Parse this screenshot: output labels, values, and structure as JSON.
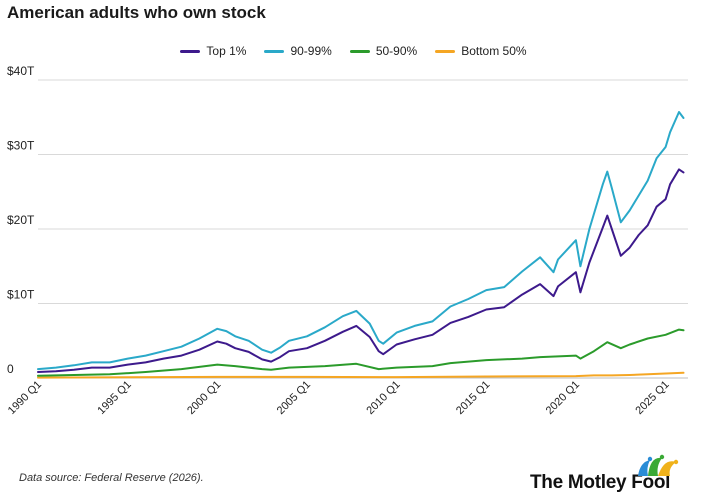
{
  "title": "American adults who own stock",
  "source": "Data source: Federal Reserve (2026).",
  "logo_text": "The Motley Fool",
  "chart_data": {
    "type": "line",
    "title": "American adults who own stock",
    "xlabel": "",
    "ylabel": "",
    "x_ticks": [
      "1990 Q1",
      "1995 Q1",
      "2000 Q1",
      "2005 Q1",
      "2010 Q1",
      "2015 Q1",
      "2020 Q1",
      "2025 Q1"
    ],
    "y_ticks": [
      {
        "value": 0,
        "label": "0"
      },
      {
        "value": 10,
        "label": "$10T"
      },
      {
        "value": 20,
        "label": "$20T"
      },
      {
        "value": 30,
        "label": "$30T"
      },
      {
        "value": 40,
        "label": "$40T"
      }
    ],
    "ylim": [
      0,
      40
    ],
    "xlim": [
      1990.0,
      2026.25
    ],
    "grid": "horizontal",
    "legend_position": "top",
    "series": [
      {
        "name": "Top 1%",
        "color": "#3d1a8c",
        "points": [
          [
            1990.0,
            0.8
          ],
          [
            1991.0,
            0.9
          ],
          [
            1992.0,
            1.1
          ],
          [
            1993.0,
            1.4
          ],
          [
            1994.0,
            1.4
          ],
          [
            1995.0,
            1.8
          ],
          [
            1996.0,
            2.1
          ],
          [
            1997.0,
            2.6
          ],
          [
            1998.0,
            3.0
          ],
          [
            1999.0,
            3.8
          ],
          [
            2000.0,
            4.9
          ],
          [
            2000.5,
            4.6
          ],
          [
            2001.0,
            4.0
          ],
          [
            2001.75,
            3.5
          ],
          [
            2002.5,
            2.5
          ],
          [
            2003.0,
            2.2
          ],
          [
            2003.5,
            2.8
          ],
          [
            2004.0,
            3.6
          ],
          [
            2005.0,
            4.0
          ],
          [
            2006.0,
            5.0
          ],
          [
            2007.0,
            6.2
          ],
          [
            2007.75,
            7.0
          ],
          [
            2008.5,
            5.5
          ],
          [
            2009.0,
            3.6
          ],
          [
            2009.25,
            3.2
          ],
          [
            2010.0,
            4.5
          ],
          [
            2011.0,
            5.2
          ],
          [
            2012.0,
            5.8
          ],
          [
            2013.0,
            7.4
          ],
          [
            2014.0,
            8.2
          ],
          [
            2015.0,
            9.2
          ],
          [
            2016.0,
            9.5
          ],
          [
            2017.0,
            11.2
          ],
          [
            2018.0,
            12.6
          ],
          [
            2018.75,
            11.0
          ],
          [
            2019.0,
            12.3
          ],
          [
            2020.0,
            14.2
          ],
          [
            2020.25,
            11.5
          ],
          [
            2020.75,
            15.5
          ],
          [
            2021.5,
            20.2
          ],
          [
            2021.75,
            21.8
          ],
          [
            2022.0,
            20.0
          ],
          [
            2022.5,
            16.4
          ],
          [
            2023.0,
            17.5
          ],
          [
            2023.5,
            19.2
          ],
          [
            2024.0,
            20.5
          ],
          [
            2024.5,
            23.0
          ],
          [
            2025.0,
            24.0
          ],
          [
            2025.25,
            26.0
          ],
          [
            2025.75,
            28.0
          ],
          [
            2026.0,
            27.6
          ]
        ]
      },
      {
        "name": "90-99%",
        "color": "#2aa9c9",
        "points": [
          [
            1990.0,
            1.2
          ],
          [
            1991.0,
            1.4
          ],
          [
            1992.0,
            1.7
          ],
          [
            1993.0,
            2.1
          ],
          [
            1994.0,
            2.1
          ],
          [
            1995.0,
            2.6
          ],
          [
            1996.0,
            3.0
          ],
          [
            1997.0,
            3.6
          ],
          [
            1998.0,
            4.2
          ],
          [
            1999.0,
            5.3
          ],
          [
            2000.0,
            6.6
          ],
          [
            2000.5,
            6.3
          ],
          [
            2001.0,
            5.6
          ],
          [
            2001.75,
            5.0
          ],
          [
            2002.5,
            3.8
          ],
          [
            2003.0,
            3.4
          ],
          [
            2003.5,
            4.1
          ],
          [
            2004.0,
            5.0
          ],
          [
            2005.0,
            5.6
          ],
          [
            2006.0,
            6.8
          ],
          [
            2007.0,
            8.3
          ],
          [
            2007.75,
            9.0
          ],
          [
            2008.5,
            7.3
          ],
          [
            2009.0,
            5.0
          ],
          [
            2009.25,
            4.6
          ],
          [
            2010.0,
            6.1
          ],
          [
            2011.0,
            7.0
          ],
          [
            2012.0,
            7.6
          ],
          [
            2013.0,
            9.6
          ],
          [
            2014.0,
            10.6
          ],
          [
            2015.0,
            11.8
          ],
          [
            2016.0,
            12.2
          ],
          [
            2017.0,
            14.3
          ],
          [
            2018.0,
            16.2
          ],
          [
            2018.75,
            14.2
          ],
          [
            2019.0,
            15.9
          ],
          [
            2020.0,
            18.5
          ],
          [
            2020.25,
            15.0
          ],
          [
            2020.75,
            20.0
          ],
          [
            2021.5,
            26.0
          ],
          [
            2021.75,
            27.7
          ],
          [
            2022.0,
            25.5
          ],
          [
            2022.5,
            20.9
          ],
          [
            2023.0,
            22.5
          ],
          [
            2023.5,
            24.5
          ],
          [
            2024.0,
            26.5
          ],
          [
            2024.5,
            29.5
          ],
          [
            2025.0,
            31.0
          ],
          [
            2025.25,
            33.0
          ],
          [
            2025.75,
            35.7
          ],
          [
            2026.0,
            34.9
          ]
        ]
      },
      {
        "name": "50-90%",
        "color": "#2b9b2b",
        "points": [
          [
            1990.0,
            0.3
          ],
          [
            1992.0,
            0.4
          ],
          [
            1994.0,
            0.5
          ],
          [
            1996.0,
            0.8
          ],
          [
            1998.0,
            1.2
          ],
          [
            2000.0,
            1.8
          ],
          [
            2001.0,
            1.6
          ],
          [
            2002.5,
            1.2
          ],
          [
            2003.0,
            1.1
          ],
          [
            2004.0,
            1.4
          ],
          [
            2006.0,
            1.6
          ],
          [
            2007.75,
            1.9
          ],
          [
            2009.0,
            1.2
          ],
          [
            2010.0,
            1.4
          ],
          [
            2012.0,
            1.6
          ],
          [
            2013.0,
            2.0
          ],
          [
            2015.0,
            2.4
          ],
          [
            2017.0,
            2.6
          ],
          [
            2018.0,
            2.8
          ],
          [
            2019.0,
            2.9
          ],
          [
            2020.0,
            3.0
          ],
          [
            2020.25,
            2.6
          ],
          [
            2021.0,
            3.6
          ],
          [
            2021.75,
            4.8
          ],
          [
            2022.5,
            4.0
          ],
          [
            2023.0,
            4.5
          ],
          [
            2024.0,
            5.3
          ],
          [
            2025.0,
            5.8
          ],
          [
            2025.75,
            6.5
          ],
          [
            2026.0,
            6.4
          ]
        ]
      },
      {
        "name": "Bottom 50%",
        "color": "#f5a623",
        "points": [
          [
            1990.0,
            0.05
          ],
          [
            1995.0,
            0.1
          ],
          [
            2000.0,
            0.15
          ],
          [
            2005.0,
            0.15
          ],
          [
            2010.0,
            0.12
          ],
          [
            2015.0,
            0.2
          ],
          [
            2020.0,
            0.25
          ],
          [
            2021.0,
            0.35
          ],
          [
            2022.0,
            0.35
          ],
          [
            2023.0,
            0.4
          ],
          [
            2024.0,
            0.5
          ],
          [
            2025.0,
            0.6
          ],
          [
            2026.0,
            0.7
          ]
        ]
      }
    ]
  }
}
